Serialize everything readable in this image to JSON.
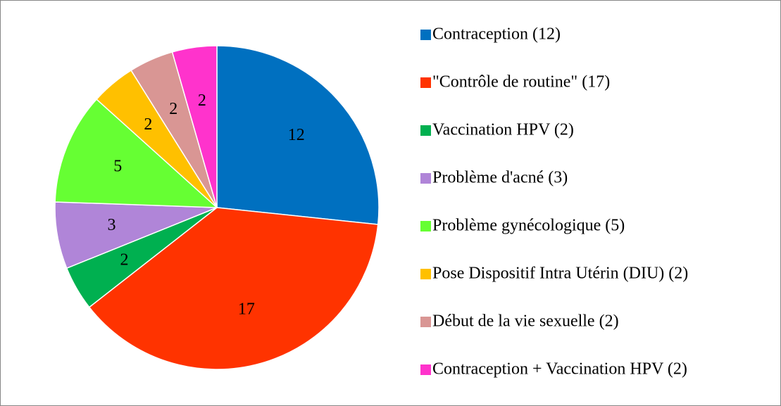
{
  "chart_data": {
    "type": "pie",
    "categories": [
      "Contraception (12)",
      "\"Contrôle de routine\" (17)",
      "Vaccination HPV (2)",
      "Problème d'acné (3)",
      "Problème gynécologique (5)",
      "Pose Dispositif Intra Utérin (DIU) (2)",
      "Début de la vie sexuelle (2)",
      "Contraception + Vaccination HPV (2)"
    ],
    "values": [
      12,
      17,
      2,
      3,
      5,
      2,
      2,
      2
    ],
    "colors": [
      "#0070c0",
      "#ff3300",
      "#00b050",
      "#b085d8",
      "#66ff33",
      "#ffc000",
      "#d99694",
      "#ff33cc"
    ],
    "legend": "right"
  }
}
